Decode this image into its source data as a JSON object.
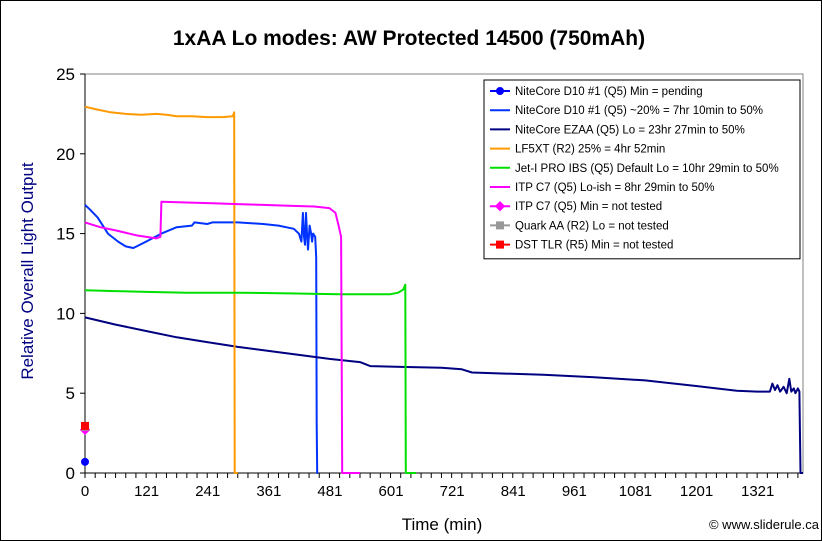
{
  "chart_data": {
    "type": "line",
    "title": "1xAA Lo modes: AW Protected 14500 (750mAh)",
    "xlabel": "Time (min)",
    "ylabel": "Relative Overall Light Output",
    "xlim": [
      0,
      1410
    ],
    "ylim": [
      0,
      25
    ],
    "x_ticks": [
      0,
      121,
      241,
      361,
      481,
      601,
      721,
      841,
      961,
      1081,
      1201,
      1321
    ],
    "y_ticks": [
      0,
      5,
      10,
      15,
      20,
      25
    ],
    "grid": false,
    "legend_position": "top-right",
    "credit": "© www.sliderule.ca",
    "series": [
      {
        "name": "NiteCore D10 #1 (Q5) Min = pending",
        "color": "#0000ff",
        "line": false,
        "marker": "circle",
        "points": [
          [
            0,
            0.7
          ]
        ]
      },
      {
        "name": "NiteCore D10 #1 (Q5) ~20% = 7hr 10min to 50%",
        "color": "#0033ff",
        "line": true,
        "marker": "none",
        "points": [
          [
            0,
            16.8
          ],
          [
            10,
            16.5
          ],
          [
            25,
            16.0
          ],
          [
            45,
            15.0
          ],
          [
            65,
            14.5
          ],
          [
            80,
            14.2
          ],
          [
            95,
            14.1
          ],
          [
            120,
            14.5
          ],
          [
            150,
            15.0
          ],
          [
            180,
            15.4
          ],
          [
            210,
            15.5
          ],
          [
            215,
            15.7
          ],
          [
            240,
            15.6
          ],
          [
            250,
            15.7
          ],
          [
            300,
            15.7
          ],
          [
            350,
            15.6
          ],
          [
            380,
            15.5
          ],
          [
            410,
            15.3
          ],
          [
            420,
            15.0
          ],
          [
            425,
            14.5
          ],
          [
            428,
            16.3
          ],
          [
            430,
            14.8
          ],
          [
            432,
            14.3
          ],
          [
            434,
            16.3
          ],
          [
            436,
            15.0
          ],
          [
            438,
            14.0
          ],
          [
            441,
            15.5
          ],
          [
            444,
            15.0
          ],
          [
            446,
            14.5
          ],
          [
            448,
            15.0
          ],
          [
            452,
            14.8
          ],
          [
            454,
            13.5
          ],
          [
            455,
            3.0
          ],
          [
            456,
            0
          ],
          [
            458,
            0
          ]
        ]
      },
      {
        "name": "NiteCore EZAA (Q5) Lo = 23hr 27min to 50%",
        "color": "#000080",
        "line": true,
        "marker": "none",
        "points": [
          [
            0,
            9.75
          ],
          [
            60,
            9.3
          ],
          [
            120,
            8.9
          ],
          [
            180,
            8.5
          ],
          [
            240,
            8.2
          ],
          [
            300,
            7.9
          ],
          [
            360,
            7.65
          ],
          [
            420,
            7.4
          ],
          [
            480,
            7.15
          ],
          [
            540,
            6.95
          ],
          [
            560,
            6.7
          ],
          [
            620,
            6.65
          ],
          [
            700,
            6.6
          ],
          [
            740,
            6.5
          ],
          [
            760,
            6.3
          ],
          [
            900,
            6.15
          ],
          [
            1000,
            6.0
          ],
          [
            1100,
            5.8
          ],
          [
            1200,
            5.45
          ],
          [
            1240,
            5.3
          ],
          [
            1280,
            5.15
          ],
          [
            1320,
            5.1
          ],
          [
            1345,
            5.1
          ],
          [
            1350,
            5.6
          ],
          [
            1355,
            5.2
          ],
          [
            1360,
            5.5
          ],
          [
            1365,
            5.1
          ],
          [
            1372,
            5.4
          ],
          [
            1378,
            5.0
          ],
          [
            1383,
            5.9
          ],
          [
            1387,
            5.1
          ],
          [
            1392,
            5.3
          ],
          [
            1395,
            5.0
          ],
          [
            1400,
            5.3
          ],
          [
            1403,
            5.1
          ],
          [
            1405,
            0
          ],
          [
            1410,
            0
          ]
        ]
      },
      {
        "name": "LF5XT (R2) 25% = 4hr 52min",
        "color": "#ff9900",
        "line": true,
        "marker": "none",
        "points": [
          [
            0,
            22.95
          ],
          [
            20,
            22.8
          ],
          [
            50,
            22.6
          ],
          [
            80,
            22.5
          ],
          [
            110,
            22.45
          ],
          [
            140,
            22.5
          ],
          [
            160,
            22.45
          ],
          [
            180,
            22.35
          ],
          [
            210,
            22.35
          ],
          [
            240,
            22.3
          ],
          [
            270,
            22.3
          ],
          [
            290,
            22.35
          ],
          [
            293,
            22.6
          ],
          [
            294,
            0
          ],
          [
            300,
            0
          ]
        ]
      },
      {
        "name": "Jet-I PRO IBS (Q5) Default Lo = 10hr 29min to 50%",
        "color": "#00e000",
        "line": true,
        "marker": "none",
        "points": [
          [
            0,
            11.45
          ],
          [
            60,
            11.4
          ],
          [
            120,
            11.35
          ],
          [
            200,
            11.3
          ],
          [
            300,
            11.3
          ],
          [
            400,
            11.25
          ],
          [
            500,
            11.2
          ],
          [
            560,
            11.2
          ],
          [
            600,
            11.2
          ],
          [
            615,
            11.3
          ],
          [
            625,
            11.5
          ],
          [
            629,
            11.8
          ],
          [
            630,
            0
          ],
          [
            650,
            0
          ]
        ]
      },
      {
        "name": "ITP C7 (Q5) Lo-ish = 8hr 29min to 50%",
        "color": "#ff00ff",
        "line": true,
        "marker": "none",
        "points": [
          [
            0,
            15.7
          ],
          [
            30,
            15.4
          ],
          [
            60,
            15.2
          ],
          [
            100,
            14.9
          ],
          [
            140,
            14.7
          ],
          [
            148,
            14.8
          ],
          [
            150,
            17.0
          ],
          [
            200,
            16.95
          ],
          [
            250,
            16.9
          ],
          [
            300,
            16.85
          ],
          [
            350,
            16.8
          ],
          [
            400,
            16.75
          ],
          [
            450,
            16.7
          ],
          [
            480,
            16.6
          ],
          [
            492,
            16.3
          ],
          [
            498,
            15.5
          ],
          [
            503,
            14.8
          ],
          [
            505,
            0
          ],
          [
            540,
            0
          ]
        ]
      },
      {
        "name": "ITP C7 (Q5) Min = not tested",
        "color": "#ff00ff",
        "line": false,
        "marker": "diamond",
        "points": [
          [
            0,
            2.7
          ]
        ]
      },
      {
        "name": "Quark AA (R2) Lo = not tested",
        "color": "#999999",
        "line": false,
        "marker": "square",
        "points": [
          [
            0,
            2.9
          ]
        ]
      },
      {
        "name": "DST TLR (R5) Min = not tested",
        "color": "#ff0000",
        "line": false,
        "marker": "square",
        "points": [
          [
            0,
            2.95
          ]
        ]
      }
    ]
  }
}
